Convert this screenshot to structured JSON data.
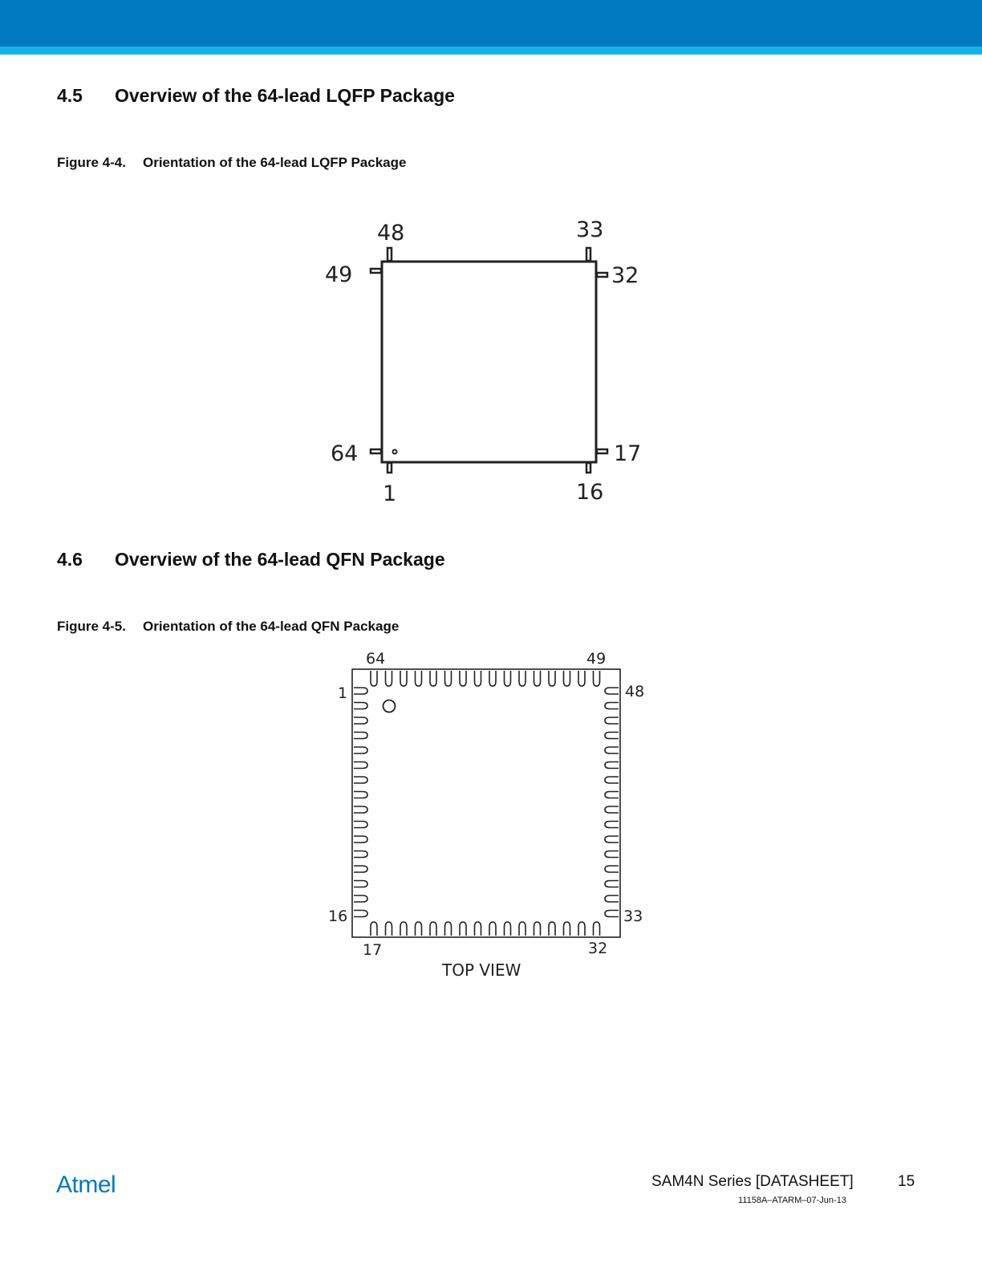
{
  "sections": [
    {
      "number": "4.5",
      "title": "Overview of the 64-lead LQFP Package"
    },
    {
      "number": "4.6",
      "title": "Overview of the 64-lead QFN Package"
    }
  ],
  "figures": [
    {
      "number": "Figure 4-4.",
      "caption": "Orientation of the 64-lead LQFP Package"
    },
    {
      "number": "Figure 4-5.",
      "caption": "Orientation of the 64-lead QFN Package"
    }
  ],
  "lqfp_pins": {
    "top_left": "48",
    "top_right": "33",
    "left_top": "49",
    "right_top": "32",
    "left_bottom": "64",
    "right_bottom": "17",
    "bottom_left": "1",
    "bottom_right": "16"
  },
  "qfn_pins": {
    "top_left": "64",
    "top_right": "49",
    "left_top": "1",
    "right_top": "48",
    "left_bottom": "16",
    "right_bottom": "33",
    "bottom_left": "17",
    "bottom_right": "32"
  },
  "qfn_view_label": "TOP VIEW",
  "footer": {
    "logo": "Atmel",
    "series": "SAM4N Series [DATASHEET]",
    "page": "15",
    "doc_id": "11158A–ATARM–07-Jun-13"
  },
  "colors": {
    "brand_dark": "#0079c1",
    "brand_light": "#14b1e7"
  }
}
